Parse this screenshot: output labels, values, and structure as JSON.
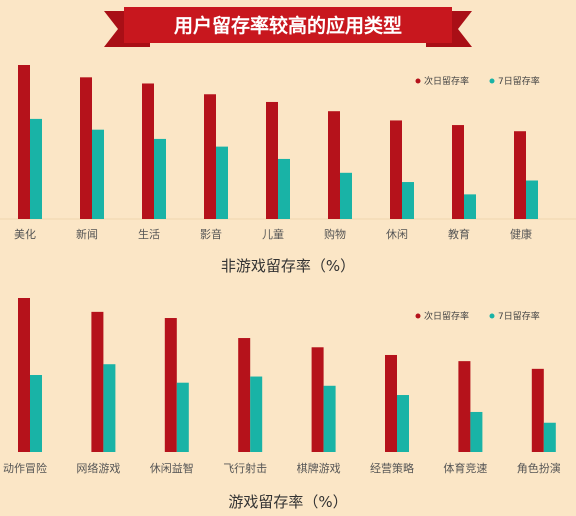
{
  "banner": {
    "title": "用户留存率较高的应用类型",
    "background_color": "#c8171e",
    "text_color": "#ffffff"
  },
  "colors": {
    "background": "#fbe6c6",
    "series_next_day": "#b5121b",
    "series_7_day": "#19b3a6"
  },
  "chart_data": [
    {
      "type": "bar",
      "title": "非游戏留存率（%）",
      "categories": [
        "美化",
        "新闻",
        "生活",
        "影音",
        "儿童",
        "购物",
        "休闲",
        "教育",
        "健康"
      ],
      "series": [
        {
          "name": "次日留存率",
          "color": "#b5121b",
          "values": [
            100,
            92,
            88,
            81,
            76,
            70,
            64,
            61,
            57
          ]
        },
        {
          "name": "7日留存率",
          "color": "#19b3a6",
          "values": [
            65,
            58,
            52,
            47,
            39,
            30,
            24,
            16,
            25
          ]
        }
      ],
      "legend_position": "top-right",
      "grid": false,
      "ylim": [
        0,
        100
      ],
      "value_scale": "relative"
    },
    {
      "type": "bar",
      "title": "游戏留存率（%）",
      "categories": [
        "动作冒险",
        "网络游戏",
        "休闲益智",
        "飞行射击",
        "棋牌游戏",
        "经营策略",
        "体育竞速",
        "角色扮演"
      ],
      "series": [
        {
          "name": "次日留存率",
          "color": "#b5121b",
          "values": [
            100,
            91,
            87,
            74,
            68,
            63,
            59,
            54
          ]
        },
        {
          "name": "7日留存率",
          "color": "#19b3a6",
          "values": [
            50,
            57,
            45,
            49,
            43,
            37,
            26,
            19
          ]
        }
      ],
      "legend_position": "top-right",
      "grid": false,
      "ylim": [
        0,
        100
      ],
      "value_scale": "relative"
    }
  ]
}
